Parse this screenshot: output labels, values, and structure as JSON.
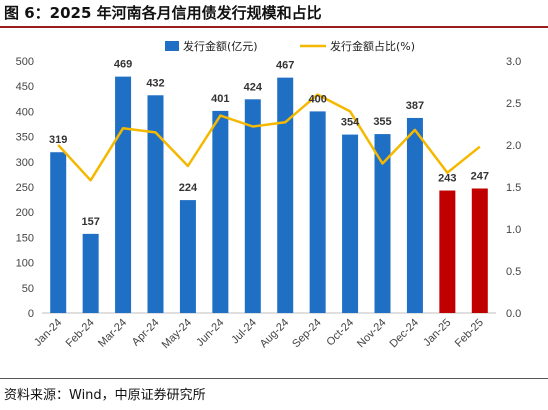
{
  "title": "图 6：2025 年河南各月信用债发行规模和占比",
  "source": "资料来源：Wind，中原证券研究所",
  "colors": {
    "bar_default": "#1f6fc5",
    "bar_highlight": "#c00000",
    "line": "#f5b800",
    "title_rule": "#9b1c1c"
  },
  "chart_data": {
    "type": "bar",
    "categories": [
      "Jan-24",
      "Feb-24",
      "Mar-24",
      "Apr-24",
      "May-24",
      "Jun-24",
      "Jul-24",
      "Aug-24",
      "Sep-24",
      "Oct-24",
      "Nov-24",
      "Dec-24",
      "Jan-25",
      "Feb-25"
    ],
    "series": [
      {
        "name": "发行金额(亿元)",
        "type": "bar",
        "axis": "left",
        "values": [
          319,
          157,
          469,
          432,
          224,
          401,
          424,
          467,
          400,
          354,
          355,
          387,
          243,
          247
        ],
        "data_labels": [
          "319",
          "157",
          "469",
          "432",
          "224",
          "401",
          "424",
          "467",
          "400",
          "354",
          "355",
          "387",
          "243",
          "247"
        ],
        "highlight_indices": [
          12,
          13
        ]
      },
      {
        "name": "发行金额占比(%)",
        "type": "line",
        "axis": "right",
        "values": [
          2.0,
          1.58,
          2.2,
          2.15,
          1.75,
          2.35,
          2.22,
          2.27,
          2.6,
          2.4,
          1.78,
          2.18,
          1.67,
          1.98
        ]
      }
    ],
    "ylim_left": [
      0,
      500
    ],
    "yticks_left": [
      "0",
      "50",
      "100",
      "150",
      "200",
      "250",
      "300",
      "350",
      "400",
      "450",
      "500"
    ],
    "ylim_right": [
      0,
      3.0
    ],
    "yticks_right": [
      "0.0",
      "0.5",
      "1.0",
      "1.5",
      "2.0",
      "2.5",
      "3.0"
    ],
    "grid": false,
    "legend_position": "top"
  }
}
